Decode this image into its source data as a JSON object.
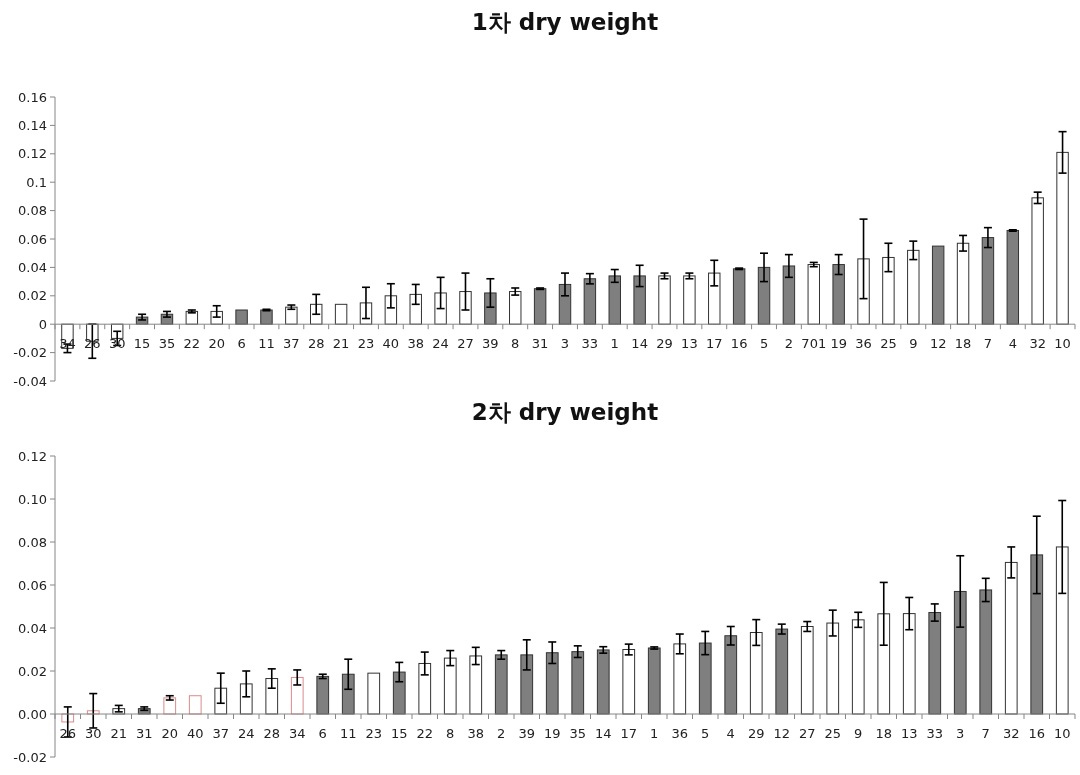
{
  "chart_data": [
    {
      "type": "bar",
      "title": "1차 dry weight",
      "grid": false,
      "categories": [
        "34",
        "26",
        "30",
        "15",
        "35",
        "22",
        "20",
        "6",
        "11",
        "37",
        "28",
        "21",
        "23",
        "40",
        "38",
        "24",
        "27",
        "39",
        "8",
        "31",
        "3",
        "33",
        "1",
        "14",
        "29",
        "13",
        "17",
        "16",
        "5",
        "2",
        "701",
        "19",
        "36",
        "25",
        "9",
        "12",
        "18",
        "7",
        "4",
        "32",
        "10"
      ],
      "values": [
        -0.017,
        -0.012,
        -0.01,
        0.005,
        0.007,
        0.009,
        0.009,
        0.01,
        0.01,
        0.012,
        0.014,
        0.014,
        0.015,
        0.02,
        0.021,
        0.022,
        0.023,
        0.022,
        0.023,
        0.025,
        0.028,
        0.032,
        0.034,
        0.034,
        0.034,
        0.034,
        0.036,
        0.039,
        0.04,
        0.041,
        0.042,
        0.042,
        0.046,
        0.047,
        0.052,
        0.055,
        0.057,
        0.061,
        0.066,
        0.089,
        0.121
      ],
      "errors": [
        0.003,
        0.012,
        0.005,
        0.002,
        0.002,
        0.001,
        0.004,
        null,
        0.0005,
        0.0015,
        0.007,
        null,
        0.011,
        0.0085,
        0.007,
        0.011,
        0.013,
        0.01,
        0.0025,
        0.0005,
        0.008,
        0.0036,
        0.0045,
        0.0075,
        0.002,
        0.002,
        0.009,
        0.0005,
        0.01,
        0.008,
        0.0015,
        0.007,
        0.028,
        0.01,
        0.0065,
        null,
        0.0055,
        0.007,
        0.0005,
        0.004,
        0.0146
      ],
      "colors": [
        "#ffffff",
        "#ffffff",
        "#ffffff",
        "#7f7f7f",
        "#7f7f7f",
        "#ffffff",
        "#ffffff",
        "#7f7f7f",
        "#7f7f7f",
        "#ffffff",
        "#ffffff",
        "#ffffff",
        "#ffffff",
        "#ffffff",
        "#ffffff",
        "#ffffff",
        "#ffffff",
        "#7f7f7f",
        "#ffffff",
        "#7f7f7f",
        "#7f7f7f",
        "#7f7f7f",
        "#7f7f7f",
        "#7f7f7f",
        "#ffffff",
        "#ffffff",
        "#ffffff",
        "#7f7f7f",
        "#7f7f7f",
        "#7f7f7f",
        "#ffffff",
        "#7f7f7f",
        "#ffffff",
        "#ffffff",
        "#ffffff",
        "#7f7f7f",
        "#ffffff",
        "#7f7f7f",
        "#7f7f7f",
        "#ffffff",
        "#ffffff"
      ],
      "ylim": [
        -0.04,
        0.16
      ],
      "yticks": [
        -0.04,
        -0.02,
        0,
        0.02,
        0.04,
        0.06,
        0.08,
        0.1,
        0.12,
        0.14,
        0.16
      ]
    },
    {
      "type": "bar",
      "title": "2차 dry weight",
      "grid": false,
      "categories": [
        "26",
        "30",
        "21",
        "31",
        "20",
        "40",
        "37",
        "24",
        "28",
        "34",
        "6",
        "11",
        "23",
        "15",
        "22",
        "8",
        "38",
        "2",
        "39",
        "19",
        "35",
        "14",
        "17",
        "1",
        "36",
        "5",
        "4",
        "29",
        "12",
        "27",
        "25",
        "9",
        "18",
        "13",
        "33",
        "3",
        "7",
        "32",
        "16",
        "10"
      ],
      "values": [
        -0.0037,
        0.0015,
        0.0025,
        0.0025,
        0.0075,
        0.0085,
        0.012,
        0.014,
        0.0165,
        0.017,
        0.0175,
        0.0185,
        0.019,
        0.0195,
        0.0235,
        0.026,
        0.027,
        0.0275,
        0.0275,
        0.0285,
        0.029,
        0.0298,
        0.03,
        0.0307,
        0.0326,
        0.033,
        0.0364,
        0.0379,
        0.0395,
        0.0407,
        0.0423,
        0.0438,
        0.0466,
        0.0467,
        0.0472,
        0.057,
        0.0577,
        0.0705,
        0.074,
        0.0777
      ],
      "errors": [
        0.007,
        0.008,
        0.0015,
        0.0008,
        0.001,
        null,
        0.007,
        0.006,
        0.0045,
        0.0035,
        0.001,
        0.007,
        null,
        0.0045,
        0.0053,
        0.0035,
        0.004,
        0.002,
        0.007,
        0.005,
        0.0027,
        0.0015,
        0.0025,
        0.0005,
        0.0046,
        0.0054,
        0.0043,
        0.006,
        0.0023,
        0.0023,
        0.006,
        0.0035,
        0.0146,
        0.0075,
        0.004,
        0.0166,
        0.0054,
        0.0072,
        0.018,
        0.0216
      ],
      "colors": [
        "#d98c8c",
        "#d98c8c",
        "#ffffff",
        "#7f7f7f",
        "#d98c8c",
        "#d98c8c",
        "#ffffff",
        "#ffffff",
        "#ffffff",
        "#d98c8c",
        "#7f7f7f",
        "#7f7f7f",
        "#ffffff",
        "#7f7f7f",
        "#ffffff",
        "#ffffff",
        "#ffffff",
        "#7f7f7f",
        "#7f7f7f",
        "#7f7f7f",
        "#7f7f7f",
        "#7f7f7f",
        "#ffffff",
        "#7f7f7f",
        "#ffffff",
        "#7f7f7f",
        "#7f7f7f",
        "#ffffff",
        "#7f7f7f",
        "#ffffff",
        "#ffffff",
        "#ffffff",
        "#ffffff",
        "#ffffff",
        "#7f7f7f",
        "#7f7f7f",
        "#7f7f7f",
        "#ffffff",
        "#7f7f7f",
        "#ffffff"
      ],
      "ylim": [
        -0.02,
        0.12
      ],
      "yticks": [
        {
          "value": -0.02,
          "label": "-0.02"
        },
        {
          "value": 0,
          "label": "0.00"
        },
        {
          "value": 0.02,
          "label": "0.02"
        },
        {
          "value": 0.04,
          "label": "0.04"
        },
        {
          "value": 0.06,
          "label": "0.06"
        },
        {
          "value": 0.08,
          "label": "0.08"
        },
        {
          "value": 0.1,
          "label": "0.10"
        },
        {
          "value": 0.12,
          "label": "0.12"
        }
      ]
    }
  ]
}
